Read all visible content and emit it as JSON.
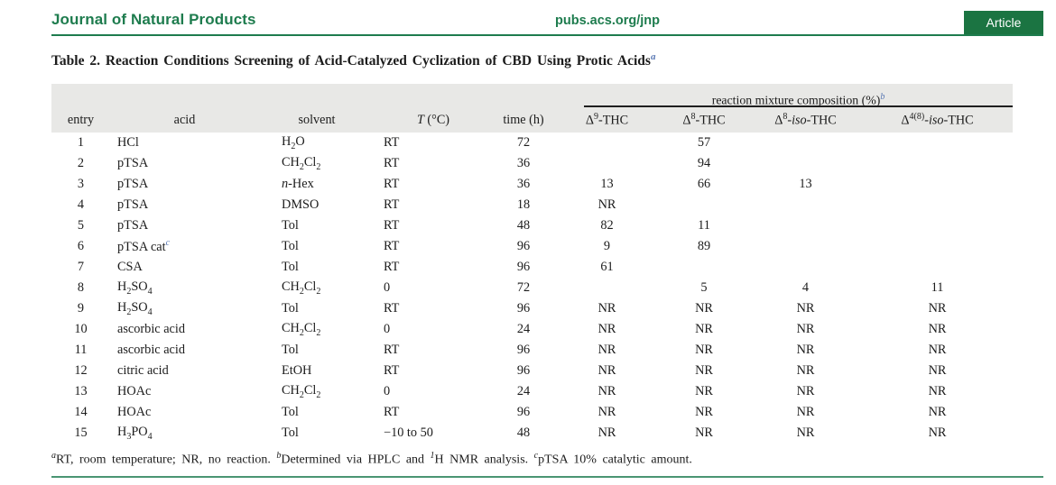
{
  "page_header": {
    "journal": "Journal of Natural Products",
    "url": "pubs.acs.org/jnp",
    "badge": "Article"
  },
  "title": "Table 2. Reaction Conditions Screening of Acid-Catalyzed Cyclization of CBD Using Protic Acids^a^",
  "table": {
    "span_header": "reaction mixture composition (%)^b^",
    "columns": [
      "entry",
      "acid",
      "solvent",
      "*T* (°C)",
      "time (h)",
      "Δ^9^-THC",
      "Δ^8^-THC",
      "Δ^8^-*iso*-THC",
      "Δ^4(8)^-*iso*-THC"
    ],
    "rows": [
      [
        "1",
        "HCl",
        "H~2~O",
        "RT",
        "72",
        "",
        "57",
        "",
        ""
      ],
      [
        "2",
        "pTSA",
        "CH~2~Cl~2~",
        "RT",
        "36",
        "",
        "94",
        "",
        ""
      ],
      [
        "3",
        "pTSA",
        "*n*-Hex",
        "RT",
        "36",
        "13",
        "66",
        "13",
        ""
      ],
      [
        "4",
        "pTSA",
        "DMSO",
        "RT",
        "18",
        "NR",
        "",
        "",
        ""
      ],
      [
        "5",
        "pTSA",
        "Tol",
        "RT",
        "48",
        "82",
        "11",
        "",
        ""
      ],
      [
        "6",
        "pTSA cat^c^",
        "Tol",
        "RT",
        "96",
        "9",
        "89",
        "",
        ""
      ],
      [
        "7",
        "CSA",
        "Tol",
        "RT",
        "96",
        "61",
        "",
        "",
        ""
      ],
      [
        "8",
        "H~2~SO~4~",
        "CH~2~Cl~2~",
        "0",
        "72",
        "",
        "5",
        "4",
        "11"
      ],
      [
        "9",
        "H~2~SO~4~",
        "Tol",
        "RT",
        "96",
        "NR",
        "NR",
        "NR",
        "NR"
      ],
      [
        "10",
        "ascorbic acid",
        "CH~2~Cl~2~",
        "0",
        "24",
        "NR",
        "NR",
        "NR",
        "NR"
      ],
      [
        "11",
        "ascorbic acid",
        "Tol",
        "RT",
        "96",
        "NR",
        "NR",
        "NR",
        "NR"
      ],
      [
        "12",
        "citric acid",
        "EtOH",
        "RT",
        "96",
        "NR",
        "NR",
        "NR",
        "NR"
      ],
      [
        "13",
        "HOAc",
        "CH~2~Cl~2~",
        "0",
        "24",
        "NR",
        "NR",
        "NR",
        "NR"
      ],
      [
        "14",
        "HOAc",
        "Tol",
        "RT",
        "96",
        "NR",
        "NR",
        "NR",
        "NR"
      ],
      [
        "15",
        "H~3~PO~4~",
        "Tol",
        "−10 to 50",
        "48",
        "NR",
        "NR",
        "NR",
        "NR"
      ]
    ]
  },
  "footnote": "^a^RT, room temperature; NR, no reaction. ^b^Determined via HPLC and ^1^H NMR analysis. ^c^pTSA 10% catalytic amount.",
  "colors": {
    "green": "#1e7c4e",
    "badge_green": "#1b7442",
    "banner_gray": "#e8e8e6",
    "sup_blue": "#5b79b4",
    "ink": "#1c1c1c",
    "rule_light_green": "#4a9573"
  }
}
